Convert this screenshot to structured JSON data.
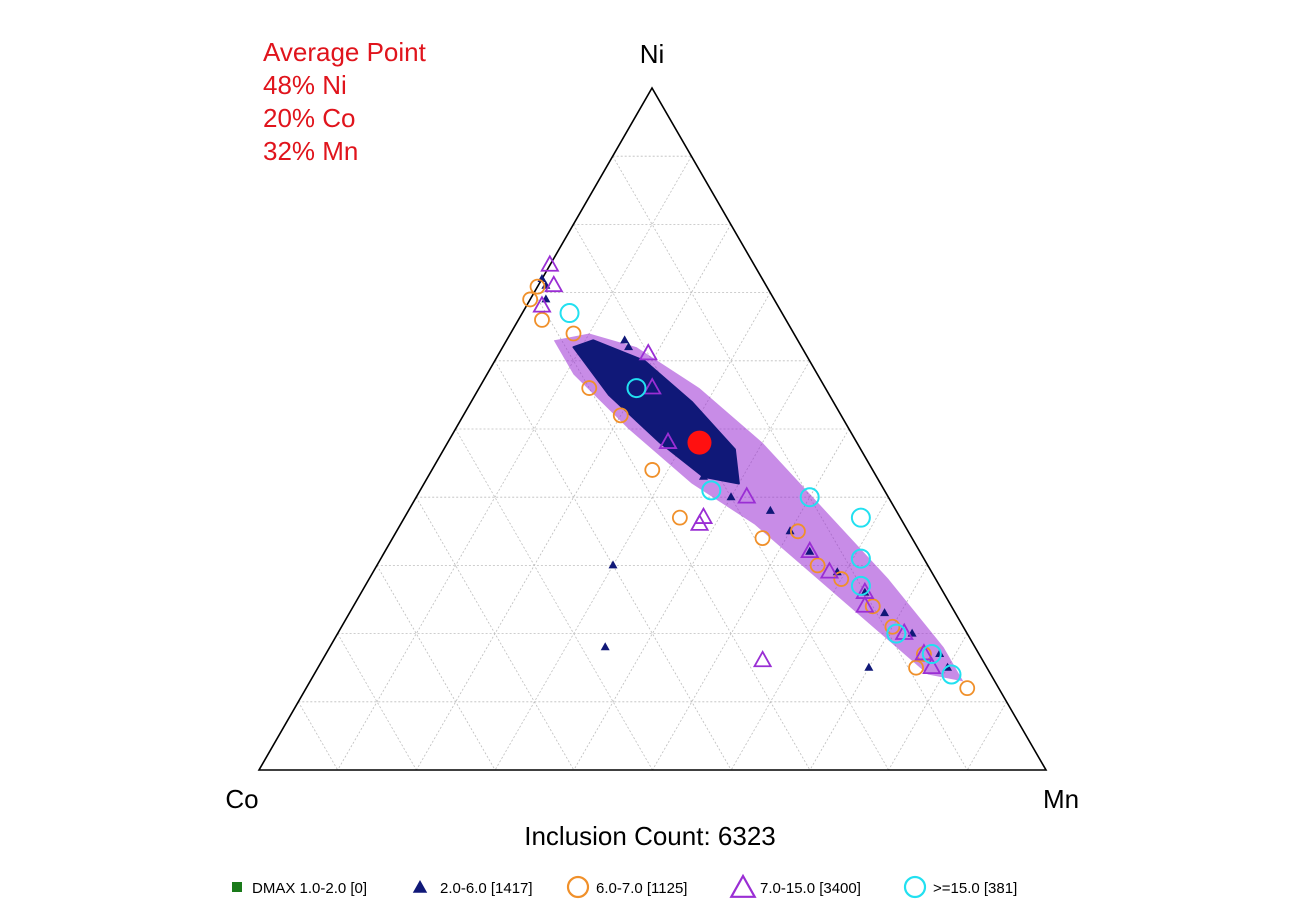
{
  "chart_data": {
    "type": "scatter",
    "subtype": "ternary",
    "apex_labels": {
      "top": "Ni",
      "left": "Co",
      "right": "Mn"
    },
    "grid": true,
    "grid_step_percent": 10,
    "annotation": {
      "title": "Average Point",
      "lines": [
        "48% Ni",
        "20% Co",
        "32% Mn"
      ],
      "average_point": {
        "Ni": 48,
        "Co": 20,
        "Mn": 32
      }
    },
    "footer": "Inclusion Count: 6323",
    "legend_position": "bottom",
    "legend": [
      {
        "label": "DMAX 1.0-2.0 [0]",
        "marker": "filled-square",
        "color": "#1a7a1a"
      },
      {
        "label": "2.0-6.0 [1417]",
        "marker": "filled-triangle",
        "color": "#101878"
      },
      {
        "label": "6.0-7.0 [1125]",
        "marker": "open-circle",
        "color": "#f0902a"
      },
      {
        "label": "7.0-15.0 [3400]",
        "marker": "open-triangle",
        "color": "#9a2ed4"
      },
      {
        "label": ">=15.0 [381]",
        "marker": "open-circle",
        "color": "#22e0f0"
      }
    ],
    "series": [
      {
        "name": "2.0-6.0 [1417]",
        "points": [
          {
            "Ni": 72,
            "Co": 28,
            "Mn": 0
          },
          {
            "Ni": 71,
            "Co": 28,
            "Mn": 1
          },
          {
            "Ni": 69,
            "Co": 29,
            "Mn": 2
          },
          {
            "Ni": 63,
            "Co": 22,
            "Mn": 15
          },
          {
            "Ni": 62,
            "Co": 22,
            "Mn": 16
          },
          {
            "Ni": 50,
            "Co": 24,
            "Mn": 26
          },
          {
            "Ni": 48,
            "Co": 22,
            "Mn": 30
          },
          {
            "Ni": 47,
            "Co": 20,
            "Mn": 33
          },
          {
            "Ni": 45,
            "Co": 21,
            "Mn": 34
          },
          {
            "Ni": 43,
            "Co": 22,
            "Mn": 35
          },
          {
            "Ni": 40,
            "Co": 20,
            "Mn": 40
          },
          {
            "Ni": 38,
            "Co": 16,
            "Mn": 46
          },
          {
            "Ni": 35,
            "Co": 15,
            "Mn": 50
          },
          {
            "Ni": 32,
            "Co": 14,
            "Mn": 54
          },
          {
            "Ni": 29,
            "Co": 12,
            "Mn": 59
          },
          {
            "Ni": 26,
            "Co": 10,
            "Mn": 64
          },
          {
            "Ni": 23,
            "Co": 9,
            "Mn": 68
          },
          {
            "Ni": 20,
            "Co": 7,
            "Mn": 73
          },
          {
            "Ni": 17,
            "Co": 5,
            "Mn": 78
          },
          {
            "Ni": 15,
            "Co": 5,
            "Mn": 80
          },
          {
            "Ni": 30,
            "Co": 40,
            "Mn": 30
          },
          {
            "Ni": 18,
            "Co": 47,
            "Mn": 35
          },
          {
            "Ni": 15,
            "Co": 15,
            "Mn": 70
          }
        ]
      },
      {
        "name": "6.0-7.0 [1125]",
        "points": [
          {
            "Ni": 73,
            "Co": 30,
            "Mn": -3
          },
          {
            "Ni": 69,
            "Co": 31,
            "Mn": 0
          },
          {
            "Ni": 66,
            "Co": 31,
            "Mn": 3
          },
          {
            "Ni": 64,
            "Co": 28,
            "Mn": 8
          },
          {
            "Ni": 56,
            "Co": 30,
            "Mn": 14
          },
          {
            "Ni": 52,
            "Co": 28,
            "Mn": 20
          },
          {
            "Ni": 44,
            "Co": 28,
            "Mn": 28
          },
          {
            "Ni": 37,
            "Co": 28,
            "Mn": 35
          },
          {
            "Ni": 34,
            "Co": 19,
            "Mn": 47
          },
          {
            "Ni": 35,
            "Co": 14,
            "Mn": 51
          },
          {
            "Ni": 30,
            "Co": 14,
            "Mn": 56
          },
          {
            "Ni": 28,
            "Co": 12,
            "Mn": 60
          },
          {
            "Ni": 24,
            "Co": 10,
            "Mn": 66
          },
          {
            "Ni": 21,
            "Co": 9,
            "Mn": 70
          },
          {
            "Ni": 17,
            "Co": 7,
            "Mn": 76
          },
          {
            "Ni": 15,
            "Co": 9,
            "Mn": 76
          },
          {
            "Ni": 12,
            "Co": 4,
            "Mn": 84
          }
        ]
      },
      {
        "name": "7.0-15.0 [3400]",
        "points": [
          {
            "Ni": 74,
            "Co": 26,
            "Mn": 0
          },
          {
            "Ni": 71,
            "Co": 27,
            "Mn": 2
          },
          {
            "Ni": 68,
            "Co": 30,
            "Mn": 2
          },
          {
            "Ni": 61,
            "Co": 20,
            "Mn": 19
          },
          {
            "Ni": 56,
            "Co": 22,
            "Mn": 22
          },
          {
            "Ni": 48,
            "Co": 24,
            "Mn": 28
          },
          {
            "Ni": 40,
            "Co": 18,
            "Mn": 42
          },
          {
            "Ni": 37,
            "Co": 25,
            "Mn": 38
          },
          {
            "Ni": 36,
            "Co": 26,
            "Mn": 38
          },
          {
            "Ni": 32,
            "Co": 14,
            "Mn": 54
          },
          {
            "Ni": 29,
            "Co": 13,
            "Mn": 58
          },
          {
            "Ni": 26,
            "Co": 10,
            "Mn": 64
          },
          {
            "Ni": 24,
            "Co": 11,
            "Mn": 65
          },
          {
            "Ni": 20,
            "Co": 8,
            "Mn": 72
          },
          {
            "Ni": 17,
            "Co": 7,
            "Mn": 76
          },
          {
            "Ni": 15,
            "Co": 7,
            "Mn": 78
          },
          {
            "Ni": 16,
            "Co": 28,
            "Mn": 56
          }
        ]
      },
      {
        "name": ">=15.0 [381]",
        "points": [
          {
            "Ni": 67,
            "Co": 27,
            "Mn": 6
          },
          {
            "Ni": 56,
            "Co": 24,
            "Mn": 20
          },
          {
            "Ni": 41,
            "Co": 22,
            "Mn": 37
          },
          {
            "Ni": 40,
            "Co": 10,
            "Mn": 50
          },
          {
            "Ni": 37,
            "Co": 5,
            "Mn": 58
          },
          {
            "Ni": 31,
            "Co": 8,
            "Mn": 61
          },
          {
            "Ni": 27,
            "Co": 10,
            "Mn": 63
          },
          {
            "Ni": 20,
            "Co": 9,
            "Mn": 71
          },
          {
            "Ni": 17,
            "Co": 6,
            "Mn": 77
          },
          {
            "Ni": 14,
            "Co": 5,
            "Mn": 81
          }
        ]
      },
      {
        "name": "Average Point",
        "points": [
          {
            "Ni": 48,
            "Co": 20,
            "Mn": 32
          }
        ]
      }
    ]
  }
}
